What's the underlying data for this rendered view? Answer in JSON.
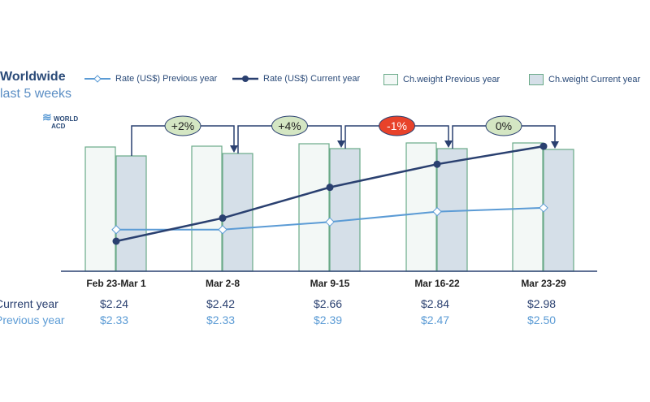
{
  "header": {
    "title": "Worldwide",
    "subtitle": "last 5 weeks",
    "logo": "WORLD ACD"
  },
  "chart_data": {
    "type": "bar+line",
    "categories": [
      "Feb 23-Mar 1",
      "Mar 2-8",
      "Mar 9-15",
      "Mar 16-22",
      "Mar 23-29"
    ],
    "series": [
      {
        "name": "Rate (US$) Previous year",
        "type": "line",
        "values": [
          2.33,
          2.33,
          2.39,
          2.47,
          2.5
        ],
        "color": "#5b9bd5"
      },
      {
        "name": "Rate (US$) Current year",
        "type": "line",
        "values": [
          2.24,
          2.42,
          2.66,
          2.84,
          2.98
        ],
        "color": "#2a4070"
      },
      {
        "name": "Ch.weight Previous year",
        "type": "bar",
        "values": [
          153,
          154,
          157,
          158,
          158
        ],
        "color": "#f3f8f6"
      },
      {
        "name": "Ch.weight Current year",
        "type": "bar",
        "values": [
          142,
          145,
          151,
          151,
          150
        ],
        "color": "#d5dfe8"
      }
    ],
    "changes": [
      {
        "label": "+2%",
        "color": "#d4e6c3"
      },
      {
        "label": "+4%",
        "color": "#d4e6c3"
      },
      {
        "label": "-1%",
        "color": "#e8422a"
      },
      {
        "label": "0%",
        "color": "#d4e6c3"
      }
    ],
    "legend_position": "top",
    "grid": false
  },
  "table": {
    "current_label": "Current year",
    "previous_label": "Previous year",
    "current": [
      "$2.24",
      "$2.42",
      "$2.66",
      "$2.84",
      "$2.98"
    ],
    "previous": [
      "$2.33",
      "$2.33",
      "$2.39",
      "$2.47",
      "$2.50"
    ]
  }
}
